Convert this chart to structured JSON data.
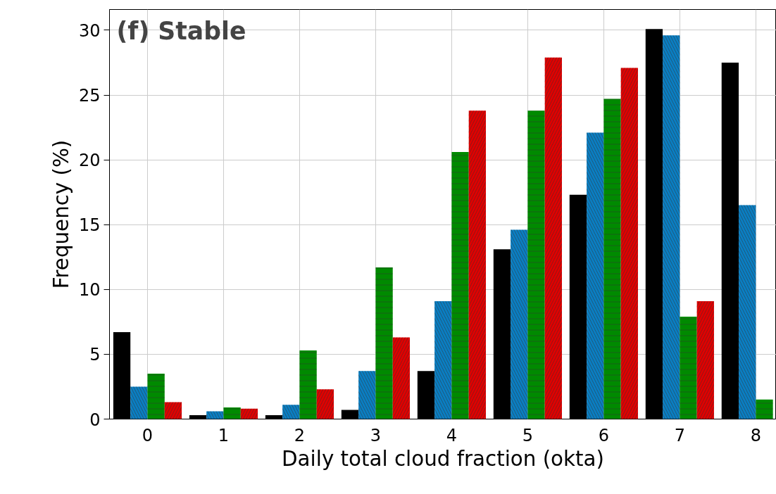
{
  "chart_data": {
    "type": "bar",
    "title": "(f) Stable",
    "xlabel": "Daily total cloud fraction (okta)",
    "ylabel": "Frequency (%)",
    "categories": [
      "0",
      "1",
      "2",
      "3",
      "4",
      "5",
      "6",
      "7",
      "8"
    ],
    "series": [
      {
        "color": "#000000",
        "values": [
          6.7,
          0.3,
          0.3,
          0.7,
          3.7,
          13.1,
          17.3,
          30.1,
          27.5
        ]
      },
      {
        "color": "#0a7ec2",
        "values": [
          2.5,
          0.6,
          1.1,
          3.7,
          9.1,
          14.6,
          22.1,
          29.6,
          16.5
        ]
      },
      {
        "color": "#008a00",
        "values": [
          3.5,
          0.9,
          5.3,
          11.7,
          20.6,
          23.8,
          24.7,
          7.9,
          1.5
        ]
      },
      {
        "color": "#e00000",
        "values": [
          1.3,
          0.8,
          2.3,
          6.3,
          23.8,
          27.9,
          27.1,
          9.1,
          null
        ]
      }
    ],
    "ylim": [
      0,
      31.6
    ],
    "yticks": [
      0,
      5,
      10,
      15,
      20,
      25,
      30
    ],
    "grid": true
  }
}
